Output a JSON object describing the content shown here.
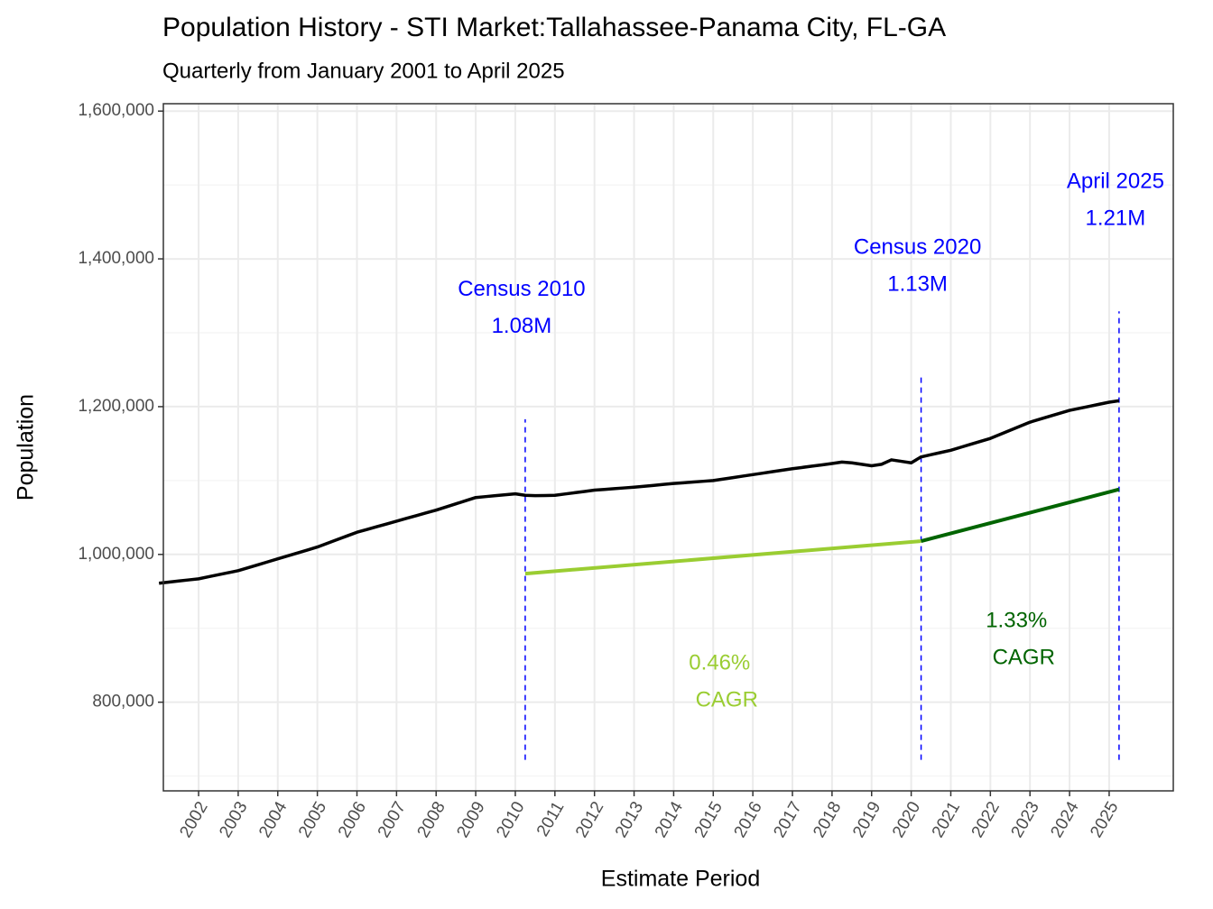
{
  "chart_data": {
    "type": "line",
    "title": "Population History - STI Market:Tallahassee-Panama City, FL-GA",
    "subtitle": "Quarterly from January 2001 to April 2025",
    "x_label": "Estimate Period",
    "y_label": "Population",
    "color": "#000000",
    "x": [
      2001,
      2001.25,
      2001.5,
      2001.75,
      2002,
      2002.25,
      2002.5,
      2002.75,
      2003,
      2003.25,
      2003.5,
      2003.75,
      2004,
      2004.25,
      2004.5,
      2004.75,
      2005,
      2005.25,
      2005.5,
      2005.75,
      2006,
      2006.25,
      2006.5,
      2006.75,
      2007,
      2007.25,
      2007.5,
      2007.75,
      2008,
      2008.25,
      2008.5,
      2008.75,
      2009,
      2009.25,
      2009.5,
      2009.75,
      2010,
      2010.25,
      2010.5,
      2010.75,
      2011,
      2011.25,
      2011.5,
      2011.75,
      2012,
      2012.25,
      2012.5,
      2012.75,
      2013,
      2013.25,
      2013.5,
      2013.75,
      2014,
      2014.25,
      2014.5,
      2014.75,
      2015,
      2015.25,
      2015.5,
      2015.75,
      2016,
      2016.25,
      2016.5,
      2016.75,
      2017,
      2017.25,
      2017.5,
      2017.75,
      2018,
      2018.25,
      2018.5,
      2018.75,
      2019,
      2019.25,
      2019.5,
      2019.75,
      2020,
      2020.25,
      2020.5,
      2020.75,
      2021,
      2021.25,
      2021.5,
      2021.75,
      2022,
      2022.25,
      2022.5,
      2022.75,
      2023,
      2023.25,
      2023.5,
      2023.75,
      2024,
      2024.25,
      2024.5,
      2024.75,
      2025,
      2025.25
    ],
    "values": [
      961000,
      962500,
      964000,
      965500,
      967000,
      969750,
      972500,
      975250,
      978000,
      982000,
      986000,
      990000,
      994000,
      998000,
      1002000,
      1006000,
      1010000,
      1015000,
      1020000,
      1025000,
      1030000,
      1033750,
      1037500,
      1041250,
      1045000,
      1048750,
      1052500,
      1056250,
      1060000,
      1064250,
      1068500,
      1072750,
      1077000,
      1078250,
      1079500,
      1080750,
      1082000,
      1080000,
      1079500,
      1079750,
      1080000,
      1081750,
      1083500,
      1085250,
      1087000,
      1088000,
      1089000,
      1090000,
      1091000,
      1092250,
      1093500,
      1094750,
      1096000,
      1097000,
      1098000,
      1099000,
      1100000,
      1102000,
      1104000,
      1106000,
      1108000,
      1110000,
      1112000,
      1114000,
      1116000,
      1117750,
      1119500,
      1121250,
      1123000,
      1125000,
      1124000,
      1122000,
      1120000,
      1122000,
      1128000,
      1126000,
      1124000,
      1132000,
      1135000,
      1138000,
      1141000,
      1145000,
      1149000,
      1153000,
      1157000,
      1162500,
      1168000,
      1173500,
      1179000,
      1183000,
      1187000,
      1191000,
      1195000,
      1197750,
      1200500,
      1203250,
      1206000,
      1208000
    ],
    "cagr_lines": [
      {
        "x": [
          2010.25,
          2020.25
        ],
        "values": [
          974000,
          1018000
        ],
        "color": "#9acd32",
        "label": "0.46%",
        "sublabel": "CAGR"
      },
      {
        "x": [
          2020.25,
          2025.25
        ],
        "values": [
          1018000,
          1088000
        ],
        "color": "#006400",
        "label": "1.33%",
        "sublabel": "CAGR"
      }
    ],
    "annotations": [
      {
        "x": 2010.25,
        "ymin": 722000,
        "ymax": 1183000,
        "color": "#0000ff",
        "title": "Census 2010",
        "label": "1.08M"
      },
      {
        "x": 2020.25,
        "ymin": 722000,
        "ymax": 1240000,
        "color": "#0000ff",
        "title": "Census 2020",
        "label": "1.13M"
      },
      {
        "x": 2025.25,
        "ymin": 722000,
        "ymax": 1329000,
        "color": "#0000ff",
        "title": "April 2025",
        "label": "1.21M"
      }
    ],
    "xlim": [
      2001.11,
      2026.62
    ],
    "xticks": [
      2002,
      2003,
      2004,
      2005,
      2006,
      2007,
      2008,
      2009,
      2010,
      2011,
      2012,
      2013,
      2014,
      2015,
      2016,
      2017,
      2018,
      2019,
      2020,
      2021,
      2022,
      2023,
      2024,
      2025
    ],
    "ylim": [
      680000,
      1610000
    ],
    "yticks": [
      {
        "value": 800000,
        "label": "800,000"
      },
      {
        "value": 1000000,
        "label": "1,000,000"
      },
      {
        "value": 1200000,
        "label": "1,200,000"
      },
      {
        "value": 1400000,
        "label": "1,400,000"
      },
      {
        "value": 1600000,
        "label": "1,600,000"
      }
    ],
    "yminorticks": [
      700000,
      900000,
      1100000,
      1300000,
      1500000
    ],
    "grid": true
  }
}
